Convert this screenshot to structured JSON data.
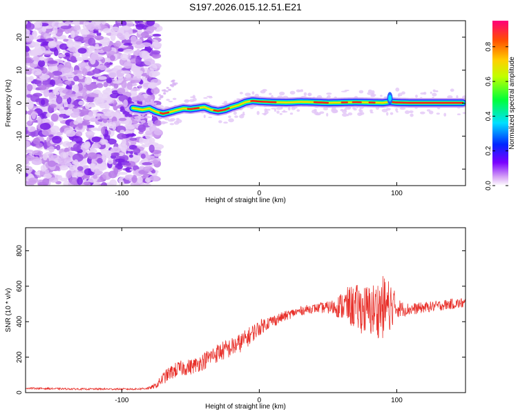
{
  "title": "S197.2026.015.12.51.E21",
  "chart_data": [
    {
      "type": "heatmap",
      "name": "spectrogram",
      "xlabel": "Height of straight line (km)",
      "ylabel": "Frequency (Hz)",
      "xlim": [
        -170,
        150
      ],
      "ylim": [
        -25,
        25
      ],
      "xticks": [
        -100,
        0,
        100
      ],
      "yticks": [
        -20,
        -10,
        0,
        10,
        20
      ],
      "colorbar": {
        "label": "Normalized spectral amplitude",
        "range": [
          0,
          0.95
        ],
        "ticks": [
          0.0,
          0.2,
          0.4,
          0.6,
          0.8
        ]
      },
      "noise_region_x": [
        -170,
        -78
      ],
      "tone_track": {
        "x": [
          -92,
          -85,
          -80,
          -75,
          -70,
          -65,
          -60,
          -55,
          -50,
          -45,
          -40,
          -35,
          -30,
          -25,
          -20,
          -15,
          -10,
          -5,
          0,
          10,
          20,
          30,
          40,
          50,
          60,
          70,
          80,
          90,
          95,
          100,
          110,
          120,
          130,
          140,
          148
        ],
        "y": [
          -1.5,
          -2,
          -1.6,
          -2.6,
          -3.2,
          -2.7,
          -2.1,
          -1.6,
          -1.8,
          -1.5,
          -1.2,
          -2.0,
          -2.4,
          -2.0,
          -1.2,
          -0.6,
          0.3,
          0.7,
          0.5,
          0.3,
          0.2,
          0.4,
          0.3,
          0.1,
          0.2,
          0.3,
          0.2,
          0.1,
          0.4,
          0.2,
          0.1,
          0.1,
          0.1,
          0.1,
          0.1
        ]
      }
    },
    {
      "type": "line",
      "name": "snr",
      "xlabel": "Height of straight line (km)",
      "ylabel": "SNR (10 * v/v)",
      "xlim": [
        -170,
        150
      ],
      "ylim": [
        0,
        930
      ],
      "xticks": [
        -100,
        0,
        100
      ],
      "yticks": [
        0,
        200,
        400,
        600,
        800
      ],
      "color": "#e8302a",
      "series": [
        {
          "name": "SNR",
          "x": [
            -170,
            -150,
            -130,
            -110,
            -90,
            -80,
            -75,
            -70,
            -65,
            -60,
            -55,
            -50,
            -45,
            -40,
            -35,
            -30,
            -25,
            -20,
            -15,
            -10,
            -5,
            0,
            5,
            10,
            15,
            20,
            25,
            30,
            35,
            40,
            45,
            50,
            55,
            60,
            65,
            70,
            75,
            80,
            85,
            90,
            95,
            100,
            105,
            110,
            120,
            130,
            140,
            150
          ],
          "values": [
            25,
            22,
            20,
            20,
            20,
            25,
            40,
            80,
            110,
            130,
            140,
            145,
            160,
            180,
            205,
            225,
            240,
            255,
            275,
            300,
            335,
            365,
            390,
            405,
            420,
            435,
            450,
            460,
            470,
            475,
            478,
            480,
            482,
            490,
            490,
            480,
            470,
            460,
            470,
            480,
            500,
            480,
            470,
            470,
            480,
            490,
            500,
            505
          ],
          "jitter": [
            5,
            5,
            5,
            5,
            5,
            8,
            15,
            35,
            40,
            45,
            45,
            45,
            45,
            50,
            50,
            55,
            55,
            55,
            55,
            55,
            50,
            45,
            40,
            35,
            30,
            28,
            26,
            25,
            25,
            25,
            30,
            35,
            50,
            80,
            110,
            130,
            140,
            150,
            160,
            180,
            150,
            60,
            40,
            35,
            30,
            30,
            30,
            30
          ]
        }
      ]
    }
  ]
}
